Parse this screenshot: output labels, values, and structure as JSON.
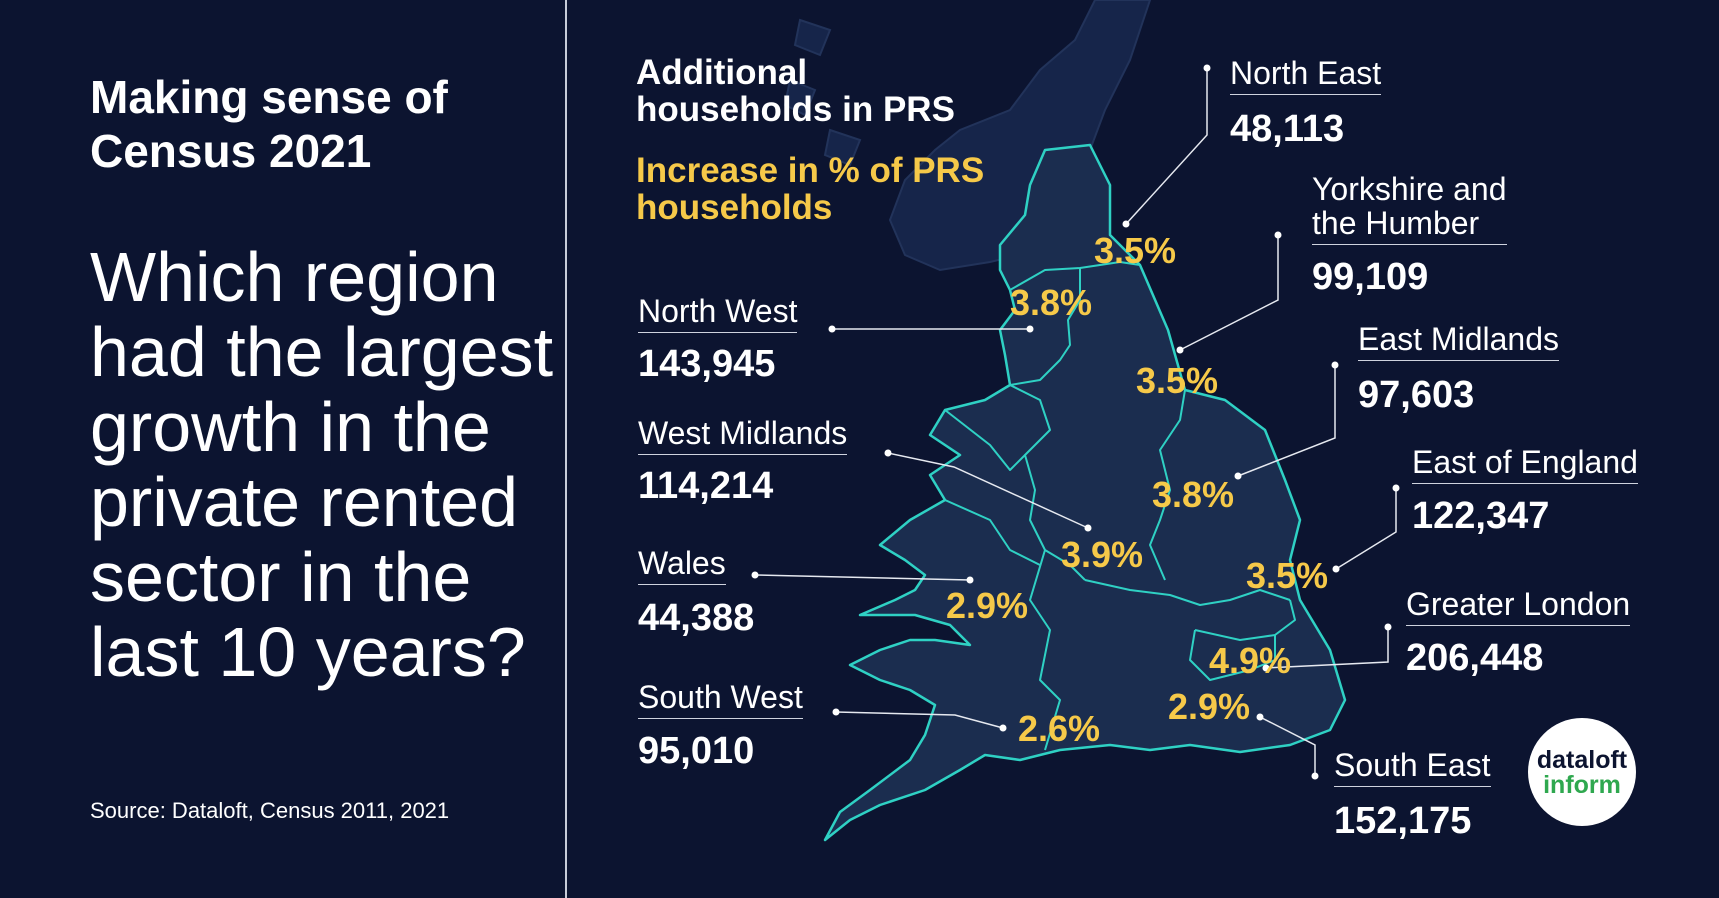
{
  "kicker": "Making sense of\nCensus 2021",
  "question": "Which region\nhad the largest\ngrowth in the\nprivate rented\nsector in the\nlast 10 years?",
  "source": "Source: Dataloft, Census 2011, 2021",
  "legend": {
    "count_label": "Additional\nhouseholds in PRS",
    "pct_label": "Increase in % of PRS\nhouseholds"
  },
  "colors": {
    "background": "#0c1430",
    "map_fill": "#1b2d4f",
    "border": "#2fd1c4",
    "accent": "#f6c949",
    "text": "#ffffff",
    "logo_green": "#2fa84f"
  },
  "regions": [
    {
      "id": "north-east",
      "name": "North East",
      "households": "48,113",
      "pct": "3.5%"
    },
    {
      "id": "yorkshire",
      "name": "Yorkshire and\nthe Humber",
      "households": "99,109",
      "pct": "3.5%"
    },
    {
      "id": "east-midlands",
      "name": "East Midlands",
      "households": "97,603",
      "pct": "3.8%"
    },
    {
      "id": "east-of-england",
      "name": "East of England",
      "households": "122,347",
      "pct": "3.5%"
    },
    {
      "id": "greater-london",
      "name": "Greater London",
      "households": "206,448",
      "pct": "4.9%"
    },
    {
      "id": "south-east",
      "name": "South East",
      "households": "152,175",
      "pct": "2.9%"
    },
    {
      "id": "north-west",
      "name": "North West",
      "households": "143,945",
      "pct": "3.8%"
    },
    {
      "id": "west-midlands",
      "name": "West Midlands",
      "households": "114,214",
      "pct": "3.9%"
    },
    {
      "id": "wales",
      "name": "Wales",
      "households": "44,388",
      "pct": "2.9%"
    },
    {
      "id": "south-west",
      "name": "South West",
      "households": "95,010",
      "pct": "2.6%"
    }
  ],
  "logo": {
    "top": "dataloft",
    "bottom": "inform"
  }
}
